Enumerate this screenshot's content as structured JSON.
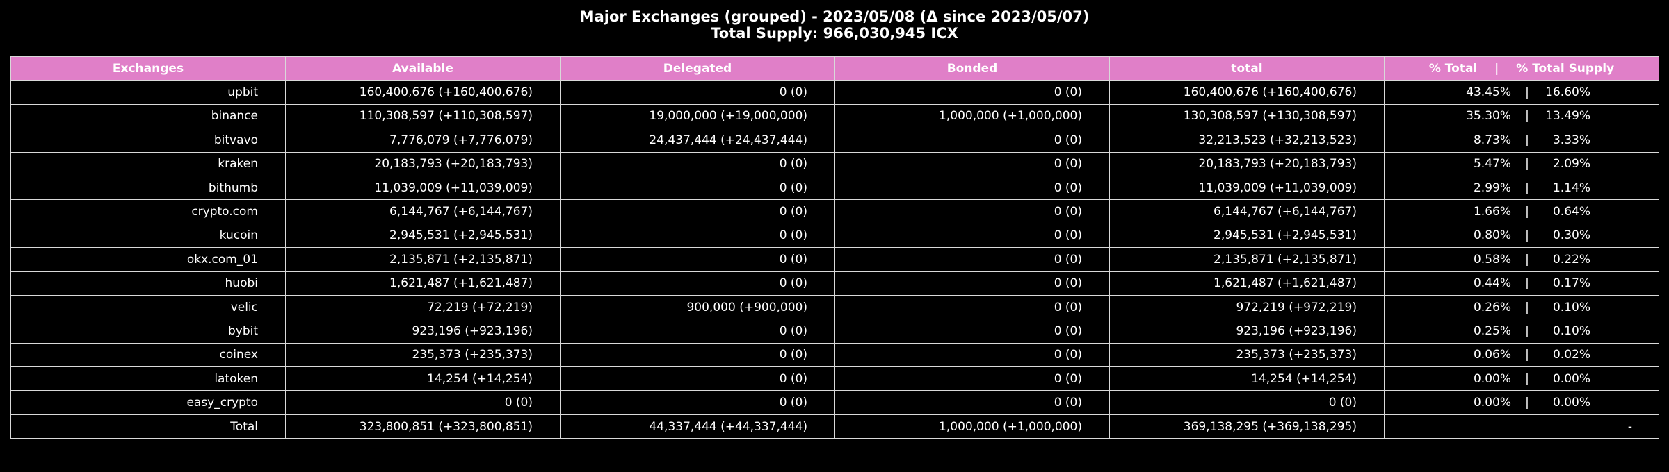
{
  "chart_data": {
    "type": "table",
    "title_line1": "Major Exchanges (grouped) - 2023/05/08 (Δ since 2023/05/07)",
    "title_line2": "Total Supply: 966,030,945 ICX",
    "header_color": "#e07fc8",
    "background_color": "#000000",
    "columns": {
      "exchanges": "Exchanges",
      "available": "Available",
      "delegated": "Delegated",
      "bonded": "Bonded",
      "total": "total",
      "pct_total": "% Total",
      "pct_sep": "|",
      "pct_supply": "% Total Supply"
    },
    "rows": [
      {
        "name": "upbit",
        "available": "160,400,676 (+160,400,676)",
        "delegated": "0 (0)",
        "bonded": "0 (0)",
        "total": "160,400,676 (+160,400,676)",
        "pct_total": "43.45%",
        "sep": "|",
        "pct_supply": "16.60%"
      },
      {
        "name": "binance",
        "available": "110,308,597 (+110,308,597)",
        "delegated": "19,000,000 (+19,000,000)",
        "bonded": "1,000,000 (+1,000,000)",
        "total": "130,308,597 (+130,308,597)",
        "pct_total": "35.30%",
        "sep": "|",
        "pct_supply": "13.49%"
      },
      {
        "name": "bitvavo",
        "available": "7,776,079 (+7,776,079)",
        "delegated": "24,437,444 (+24,437,444)",
        "bonded": "0 (0)",
        "total": "32,213,523 (+32,213,523)",
        "pct_total": "8.73%",
        "sep": "|",
        "pct_supply": "3.33%"
      },
      {
        "name": "kraken",
        "available": "20,183,793 (+20,183,793)",
        "delegated": "0 (0)",
        "bonded": "0 (0)",
        "total": "20,183,793 (+20,183,793)",
        "pct_total": "5.47%",
        "sep": "|",
        "pct_supply": "2.09%"
      },
      {
        "name": "bithumb",
        "available": "11,039,009 (+11,039,009)",
        "delegated": "0 (0)",
        "bonded": "0 (0)",
        "total": "11,039,009 (+11,039,009)",
        "pct_total": "2.99%",
        "sep": "|",
        "pct_supply": "1.14%"
      },
      {
        "name": "crypto.com",
        "available": "6,144,767 (+6,144,767)",
        "delegated": "0 (0)",
        "bonded": "0 (0)",
        "total": "6,144,767 (+6,144,767)",
        "pct_total": "1.66%",
        "sep": "|",
        "pct_supply": "0.64%"
      },
      {
        "name": "kucoin",
        "available": "2,945,531 (+2,945,531)",
        "delegated": "0 (0)",
        "bonded": "0 (0)",
        "total": "2,945,531 (+2,945,531)",
        "pct_total": "0.80%",
        "sep": "|",
        "pct_supply": "0.30%"
      },
      {
        "name": "okx.com_01",
        "available": "2,135,871 (+2,135,871)",
        "delegated": "0 (0)",
        "bonded": "0 (0)",
        "total": "2,135,871 (+2,135,871)",
        "pct_total": "0.58%",
        "sep": "|",
        "pct_supply": "0.22%"
      },
      {
        "name": "huobi",
        "available": "1,621,487 (+1,621,487)",
        "delegated": "0 (0)",
        "bonded": "0 (0)",
        "total": "1,621,487 (+1,621,487)",
        "pct_total": "0.44%",
        "sep": "|",
        "pct_supply": "0.17%"
      },
      {
        "name": "velic",
        "available": "72,219 (+72,219)",
        "delegated": "900,000 (+900,000)",
        "bonded": "0 (0)",
        "total": "972,219 (+972,219)",
        "pct_total": "0.26%",
        "sep": "|",
        "pct_supply": "0.10%"
      },
      {
        "name": "bybit",
        "available": "923,196 (+923,196)",
        "delegated": "0 (0)",
        "bonded": "0 (0)",
        "total": "923,196 (+923,196)",
        "pct_total": "0.25%",
        "sep": "|",
        "pct_supply": "0.10%"
      },
      {
        "name": "coinex",
        "available": "235,373 (+235,373)",
        "delegated": "0 (0)",
        "bonded": "0 (0)",
        "total": "235,373 (+235,373)",
        "pct_total": "0.06%",
        "sep": "|",
        "pct_supply": "0.02%"
      },
      {
        "name": "latoken",
        "available": "14,254 (+14,254)",
        "delegated": "0 (0)",
        "bonded": "0 (0)",
        "total": "14,254 (+14,254)",
        "pct_total": "0.00%",
        "sep": "|",
        "pct_supply": "0.00%"
      },
      {
        "name": "easy_crypto",
        "available": "0 (0)",
        "delegated": "0 (0)",
        "bonded": "0 (0)",
        "total": "0 (0)",
        "pct_total": "0.00%",
        "sep": "|",
        "pct_supply": "0.00%"
      }
    ],
    "total_row": {
      "name": "Total",
      "available": "323,800,851 (+323,800,851)",
      "delegated": "44,337,444 (+44,337,444)",
      "bonded": "1,000,000 (+1,000,000)",
      "total": "369,138,295 (+369,138,295)",
      "pct": "-"
    }
  }
}
